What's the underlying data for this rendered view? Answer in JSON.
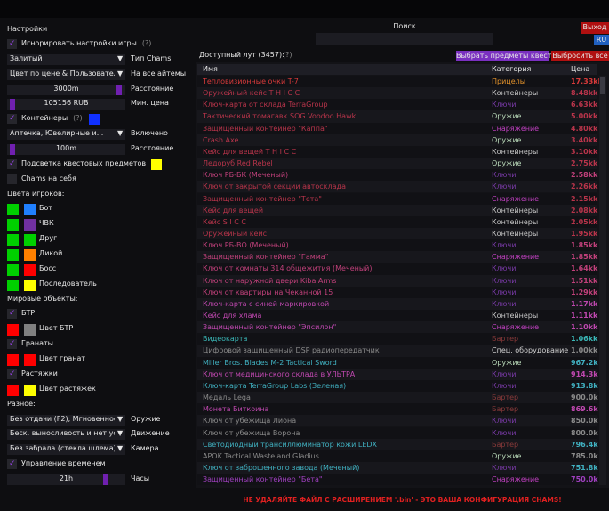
{
  "settings": {
    "title": "Настройки",
    "items": [
      {
        "kind": "check",
        "label": "Игнорировать настройки игры",
        "help": "(?)",
        "checked": true
      },
      {
        "kind": "combo",
        "value": "Залитый",
        "label": "Тип Chams"
      },
      {
        "kind": "combo",
        "value": "Цвет по цене & Пользовательс",
        "label": "На все айтемы"
      },
      {
        "kind": "slider",
        "value": "3000m",
        "label": "Расстояние",
        "handle": 0.97
      },
      {
        "kind": "slider",
        "value": "105156 RUB",
        "label": "Мин. цена",
        "handle": 0.02
      },
      {
        "kind": "check",
        "label": "Контейнеры",
        "help": "(?)",
        "checked": true,
        "swatch": "#1030ff"
      },
      {
        "kind": "combo",
        "value": "Аптечка, Ювелирные и...",
        "label": "Включено"
      },
      {
        "kind": "slider",
        "value": "100m",
        "label": "Расстояние",
        "handle": 0.02
      },
      {
        "kind": "check",
        "label": "Подсветка квестовых предметов",
        "checked": true,
        "swatch": "#ffff00"
      },
      {
        "kind": "check",
        "label": "Chams на себя",
        "checked": false
      },
      {
        "kind": "header",
        "label": "Цвета игроков:"
      },
      {
        "kind": "colors",
        "label": "Бот",
        "colors": [
          "#00d000",
          "#2080ff"
        ]
      },
      {
        "kind": "colors",
        "label": "ЧВК",
        "colors": [
          "#00d000",
          "#7030a0"
        ]
      },
      {
        "kind": "colors",
        "label": "Друг",
        "colors": [
          "#00d000",
          "#00d000"
        ]
      },
      {
        "kind": "colors",
        "label": "Дикой",
        "colors": [
          "#00d000",
          "#ff8000"
        ]
      },
      {
        "kind": "colors",
        "label": "Босс",
        "colors": [
          "#00d000",
          "#ff0000"
        ]
      },
      {
        "kind": "colors",
        "label": "Последователь",
        "colors": [
          "#00d000",
          "#ffff00"
        ]
      },
      {
        "kind": "header",
        "label": "Мировые объекты:"
      },
      {
        "kind": "check",
        "label": "БТР",
        "checked": true
      },
      {
        "kind": "colors",
        "label": "Цвет БТР",
        "colors": [
          "#ff0000",
          "#808080"
        ]
      },
      {
        "kind": "check",
        "label": "Гранаты",
        "checked": true
      },
      {
        "kind": "colors",
        "label": "Цвет гранат",
        "colors": [
          "#ff0000",
          "#ff0000"
        ]
      },
      {
        "kind": "check",
        "label": "Растяжки",
        "checked": true
      },
      {
        "kind": "colors",
        "label": "Цвет растяжек",
        "colors": [
          "#ff0000",
          "#ffff00"
        ]
      },
      {
        "kind": "header",
        "label": "Разное:"
      },
      {
        "kind": "combo",
        "value": "Без отдачи (F2), Мгновенное п",
        "label": "Оружие"
      },
      {
        "kind": "combo",
        "value": "Беск. выносливость и нет уста",
        "label": "Движение"
      },
      {
        "kind": "combo",
        "value": "Без забрала (стекла шлема)",
        "label": "Камера"
      },
      {
        "kind": "check",
        "label": "Управление временем",
        "checked": true
      },
      {
        "kind": "slider",
        "value": "21h",
        "label": "Часы",
        "handle": 0.85
      }
    ]
  },
  "search": {
    "label": "Поиск"
  },
  "buttons": {
    "exit": "Выход",
    "lang": "RU",
    "quest": "Выбрать предметы квеста",
    "drop": "Выбросить все"
  },
  "loot": {
    "title": "Доступный лут (3457):",
    "help": "(?)",
    "columns": [
      "Имя",
      "Категория",
      "Цена"
    ],
    "rows": [
      {
        "name": "Тепловизионные очки T-7",
        "category": "Прицелы",
        "price": "17.33kk",
        "color": "#d83a3a",
        "category_color": "#e0902a"
      },
      {
        "name": "Оружейный кейс T H I C C",
        "category": "Контейнеры",
        "price": "8.48kk",
        "color": "#b8344a",
        "category_color": "#c8c8c8"
      },
      {
        "name": "Ключ-карта от склада TerraGroup",
        "category": "Ключи",
        "price": "6.63kk",
        "color": "#b8344a",
        "category_color": "#7a3aa8"
      },
      {
        "name": "Тактический томагавк SOG Voodoo Hawk",
        "category": "Оружие",
        "price": "5.00kk",
        "color": "#b8344a",
        "category_color": "#b8d8b8"
      },
      {
        "name": "Защищенный контейнер \"Каппа\"",
        "category": "Снаряжение",
        "price": "4.80kk",
        "color": "#b8344a",
        "category_color": "#c040c0"
      },
      {
        "name": "Crash Axe",
        "category": "Оружие",
        "price": "3.40kk",
        "color": "#b8344a",
        "category_color": "#b8d8b8"
      },
      {
        "name": "Кейс для вещей T H I C C",
        "category": "Контейнеры",
        "price": "3.10kk",
        "color": "#b8344a",
        "category_color": "#c8c8c8"
      },
      {
        "name": "Ледоруб Red Rebel",
        "category": "Оружие",
        "price": "2.75kk",
        "color": "#b8344a",
        "category_color": "#b8d8b8"
      },
      {
        "name": "Ключ РБ-БК (Меченый)",
        "category": "Ключи",
        "price": "2.58kk",
        "color": "#c0407a",
        "category_color": "#7a3aa8"
      },
      {
        "name": "Ключ от закрытой секции автосклада",
        "category": "Ключи",
        "price": "2.26kk",
        "color": "#b8344a",
        "category_color": "#7a3aa8"
      },
      {
        "name": "Защищенный контейнер \"Тета\"",
        "category": "Снаряжение",
        "price": "2.15kk",
        "color": "#b8344a",
        "category_color": "#c040c0"
      },
      {
        "name": "Кейс для вещей",
        "category": "Контейнеры",
        "price": "2.08kk",
        "color": "#b8344a",
        "category_color": "#c8c8c8"
      },
      {
        "name": "Кейс S I C C",
        "category": "Контейнеры",
        "price": "2.05kk",
        "color": "#b8344a",
        "category_color": "#c8c8c8"
      },
      {
        "name": "Оружейный кейс",
        "category": "Контейнеры",
        "price": "1.95kk",
        "color": "#b8344a",
        "category_color": "#c8c8c8"
      },
      {
        "name": "Ключ РБ-ВО (Меченый)",
        "category": "Ключи",
        "price": "1.85kk",
        "color": "#c0407a",
        "category_color": "#7a3aa8"
      },
      {
        "name": "Защищенный контейнер \"Гамма\"",
        "category": "Снаряжение",
        "price": "1.85kk",
        "color": "#c0407a",
        "category_color": "#c040c0"
      },
      {
        "name": "Ключ от комнаты 314 общежития (Меченый)",
        "category": "Ключи",
        "price": "1.64kk",
        "color": "#c0407a",
        "category_color": "#7a3aa8"
      },
      {
        "name": "Ключ от наружной двери Kiba Arms",
        "category": "Ключи",
        "price": "1.51kk",
        "color": "#c0407a",
        "category_color": "#7a3aa8"
      },
      {
        "name": "Ключ от квартиры на Чеканной 15",
        "category": "Ключи",
        "price": "1.29kk",
        "color": "#c0407a",
        "category_color": "#7a3aa8"
      },
      {
        "name": "Ключ-карта с синей маркировкой",
        "category": "Ключи",
        "price": "1.17kk",
        "color": "#c048b0",
        "category_color": "#7a3aa8"
      },
      {
        "name": "Кейс для хлама",
        "category": "Контейнеры",
        "price": "1.11kk",
        "color": "#c048b0",
        "category_color": "#c8c8c8"
      },
      {
        "name": "Защищенный контейнер \"Эпсилон\"",
        "category": "Снаряжение",
        "price": "1.10kk",
        "color": "#c048b0",
        "category_color": "#c040c0"
      },
      {
        "name": "Видеокарта",
        "category": "Бартер",
        "price": "1.06kk",
        "color": "#3ab8b8",
        "category_color": "#8a3a3a"
      },
      {
        "name": "Цифровой защищенный DSP радиопередатчик",
        "category": "Спец. оборудование",
        "price": "1.00kk",
        "color": "#8a8a8a",
        "category_color": "#d0d0d0"
      },
      {
        "name": "Miller Bros. Blades M-2 Tactical Sword",
        "category": "Оружие",
        "price": "967.2k",
        "color": "#40b0c0",
        "category_color": "#b8d8b8"
      },
      {
        "name": "Ключ от медицинского склада в УЛЬТРА",
        "category": "Ключи",
        "price": "914.3k",
        "color": "#c048b0",
        "category_color": "#7a3aa8"
      },
      {
        "name": "Ключ-карта TerraGroup Labs (Зеленая)",
        "category": "Ключи",
        "price": "913.8k",
        "color": "#40b0c0",
        "category_color": "#7a3aa8"
      },
      {
        "name": "Медаль Lega",
        "category": "Бартер",
        "price": "900.0k",
        "color": "#8a8a8a",
        "category_color": "#8a3a3a"
      },
      {
        "name": "Монета Биткоина",
        "category": "Бартер",
        "price": "869.6k",
        "color": "#c048b0",
        "category_color": "#8a3a3a"
      },
      {
        "name": "Ключ от убежища Лиона",
        "category": "Ключи",
        "price": "850.0k",
        "color": "#8a8a8a",
        "category_color": "#7a3aa8"
      },
      {
        "name": "Ключ от убежища Ворона",
        "category": "Ключи",
        "price": "800.0k",
        "color": "#8a8a8a",
        "category_color": "#7a3aa8"
      },
      {
        "name": "Светодиодный трансиллюминатор кожи LEDX",
        "category": "Бартер",
        "price": "796.4k",
        "color": "#40b0c0",
        "category_color": "#8a3a3a"
      },
      {
        "name": "APOK Tactical Wasteland Gladius",
        "category": "Оружие",
        "price": "785.0k",
        "color": "#8a8a8a",
        "category_color": "#b8d8b8"
      },
      {
        "name": "Ключ от заброшенного завода (Меченый)",
        "category": "Ключи",
        "price": "751.8k",
        "color": "#40b0c0",
        "category_color": "#7a3aa8"
      },
      {
        "name": "Защищенный контейнер \"Бета\"",
        "category": "Снаряжение",
        "price": "750.0k",
        "color": "#a040c0",
        "category_color": "#c040c0"
      }
    ]
  },
  "footer": "НЕ УДАЛЯЙТЕ ФАЙЛ С РАСШИРЕНИЕМ '.bin' - ЭТО ВАША КОНФИГУРАЦИЯ CHAMS!"
}
